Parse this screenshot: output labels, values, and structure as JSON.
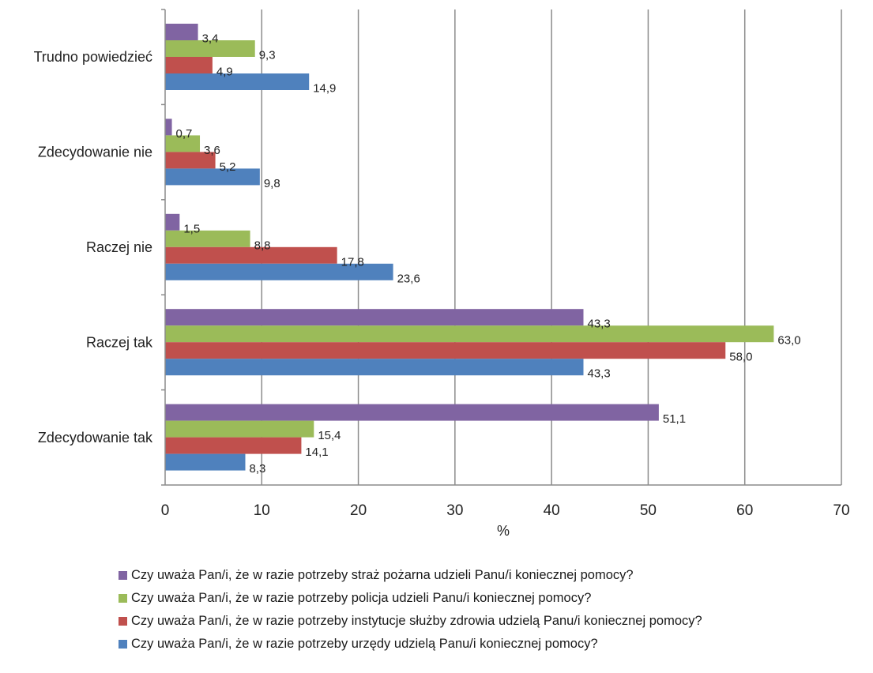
{
  "chart_data": {
    "type": "bar",
    "orientation": "horizontal",
    "categories": [
      "Zdecydowanie tak",
      "Raczej tak",
      "Raczej nie",
      "Zdecydowanie nie",
      "Trudno powiedzieć"
    ],
    "series": [
      {
        "name": "Czy uważa Pan/i, że w razie potrzeby straż pożarna udzieli Panu/i koniecznej pomocy?",
        "color": "#8064A2",
        "values": [
          51.1,
          43.3,
          1.5,
          0.7,
          3.4
        ],
        "labels": [
          "51,1",
          "43,3",
          "1,5",
          "0,7",
          "3,4"
        ]
      },
      {
        "name": "Czy uważa Pan/i, że w razie potrzeby policja udzieli Panu/i koniecznej pomocy?",
        "color": "#9BBB59",
        "values": [
          15.4,
          63.0,
          8.8,
          3.6,
          9.3
        ],
        "labels": [
          "15,4",
          "63,0",
          "8,8",
          "3,6",
          "9,3"
        ]
      },
      {
        "name": "Czy uważa Pan/i, że w razie potrzeby instytucje służby zdrowia udzielą Panu/i koniecznej pomocy?",
        "color": "#C0504D",
        "values": [
          14.1,
          58.0,
          17.8,
          5.2,
          4.9
        ],
        "labels": [
          "14,1",
          "58,0",
          "17,8",
          "5,2",
          "4,9"
        ]
      },
      {
        "name": "Czy uważa Pan/i, że w razie potrzeby urzędy udzielą Panu/i koniecznej pomocy?",
        "color": "#4F81BD",
        "values": [
          8.3,
          43.3,
          23.6,
          9.8,
          14.9
        ],
        "labels": [
          "8,3",
          "43,3",
          "23,6",
          "9,8",
          "14,9"
        ]
      }
    ],
    "xlabel": "%",
    "ylabel": "",
    "xlim": [
      0,
      70
    ],
    "xticks": [
      "0",
      "10",
      "20",
      "30",
      "40",
      "50",
      "60",
      "70"
    ],
    "grid": "vertical",
    "legend_position": "bottom"
  }
}
